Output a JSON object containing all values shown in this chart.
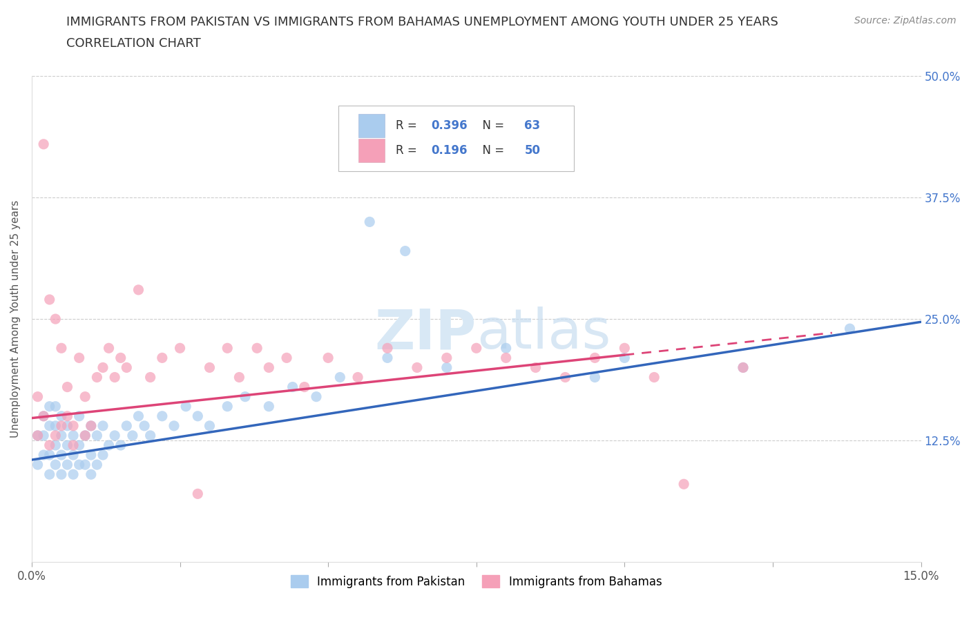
{
  "title_line1": "IMMIGRANTS FROM PAKISTAN VS IMMIGRANTS FROM BAHAMAS UNEMPLOYMENT AMONG YOUTH UNDER 25 YEARS",
  "title_line2": "CORRELATION CHART",
  "source_text": "Source: ZipAtlas.com",
  "ylabel": "Unemployment Among Youth under 25 years",
  "xlim": [
    0.0,
    0.15
  ],
  "ylim": [
    0.0,
    0.5
  ],
  "xticks": [
    0.0,
    0.025,
    0.05,
    0.075,
    0.1,
    0.125,
    0.15
  ],
  "xticklabels": [
    "0.0%",
    "",
    "",
    "",
    "",
    "",
    "15.0%"
  ],
  "yticks": [
    0.0,
    0.125,
    0.25,
    0.375,
    0.5
  ],
  "yticklabels_right": [
    "",
    "12.5%",
    "25.0%",
    "37.5%",
    "50.0%"
  ],
  "pakistan_color": "#aaccee",
  "bahamas_color": "#f5a0b8",
  "pakistan_line_color": "#3366bb",
  "bahamas_line_color": "#dd4477",
  "grid_color": "#cccccc",
  "watermark_color": "#d8e8f5",
  "R_pakistan": 0.396,
  "N_pakistan": 63,
  "R_bahamas": 0.196,
  "N_bahamas": 50,
  "pakistan_x": [
    0.001,
    0.001,
    0.002,
    0.002,
    0.002,
    0.003,
    0.003,
    0.003,
    0.003,
    0.004,
    0.004,
    0.004,
    0.004,
    0.005,
    0.005,
    0.005,
    0.005,
    0.006,
    0.006,
    0.006,
    0.007,
    0.007,
    0.007,
    0.008,
    0.008,
    0.008,
    0.009,
    0.009,
    0.01,
    0.01,
    0.01,
    0.011,
    0.011,
    0.012,
    0.012,
    0.013,
    0.014,
    0.015,
    0.016,
    0.017,
    0.018,
    0.019,
    0.02,
    0.022,
    0.024,
    0.026,
    0.028,
    0.03,
    0.033,
    0.036,
    0.04,
    0.044,
    0.048,
    0.052,
    0.057,
    0.063,
    0.06,
    0.07,
    0.08,
    0.095,
    0.1,
    0.12,
    0.138
  ],
  "pakistan_y": [
    0.1,
    0.13,
    0.11,
    0.13,
    0.15,
    0.09,
    0.11,
    0.14,
    0.16,
    0.1,
    0.12,
    0.14,
    0.16,
    0.09,
    0.11,
    0.13,
    0.15,
    0.1,
    0.12,
    0.14,
    0.09,
    0.11,
    0.13,
    0.1,
    0.12,
    0.15,
    0.1,
    0.13,
    0.09,
    0.11,
    0.14,
    0.1,
    0.13,
    0.11,
    0.14,
    0.12,
    0.13,
    0.12,
    0.14,
    0.13,
    0.15,
    0.14,
    0.13,
    0.15,
    0.14,
    0.16,
    0.15,
    0.14,
    0.16,
    0.17,
    0.16,
    0.18,
    0.17,
    0.19,
    0.35,
    0.32,
    0.21,
    0.2,
    0.22,
    0.19,
    0.21,
    0.2,
    0.24
  ],
  "bahamas_x": [
    0.001,
    0.001,
    0.002,
    0.002,
    0.003,
    0.003,
    0.004,
    0.004,
    0.005,
    0.005,
    0.006,
    0.006,
    0.007,
    0.007,
    0.008,
    0.009,
    0.009,
    0.01,
    0.011,
    0.012,
    0.013,
    0.014,
    0.015,
    0.016,
    0.018,
    0.02,
    0.022,
    0.025,
    0.028,
    0.03,
    0.033,
    0.035,
    0.038,
    0.04,
    0.043,
    0.046,
    0.05,
    0.055,
    0.06,
    0.065,
    0.07,
    0.075,
    0.08,
    0.085,
    0.09,
    0.095,
    0.1,
    0.105,
    0.11,
    0.12
  ],
  "bahamas_y": [
    0.13,
    0.17,
    0.15,
    0.43,
    0.12,
    0.27,
    0.13,
    0.25,
    0.14,
    0.22,
    0.15,
    0.18,
    0.12,
    0.14,
    0.21,
    0.13,
    0.17,
    0.14,
    0.19,
    0.2,
    0.22,
    0.19,
    0.21,
    0.2,
    0.28,
    0.19,
    0.21,
    0.22,
    0.07,
    0.2,
    0.22,
    0.19,
    0.22,
    0.2,
    0.21,
    0.18,
    0.21,
    0.19,
    0.22,
    0.2,
    0.21,
    0.22,
    0.21,
    0.2,
    0.19,
    0.21,
    0.22,
    0.19,
    0.08,
    0.2
  ],
  "pk_line_x0": 0.0,
  "pk_line_y0": 0.105,
  "pk_line_x1": 0.15,
  "pk_line_y1": 0.247,
  "bh_line_x0": 0.0,
  "bh_line_y0": 0.148,
  "bh_line_x1": 0.1,
  "bh_line_y1": 0.213
}
